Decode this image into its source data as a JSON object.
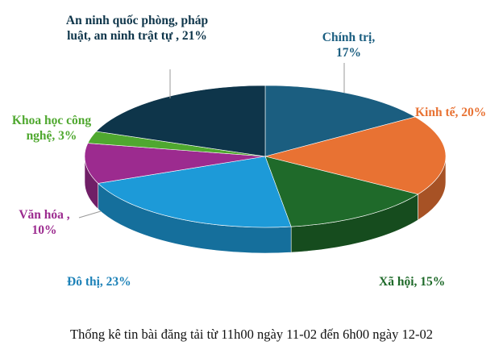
{
  "chart_data": {
    "type": "pie",
    "style": "3d",
    "title": "",
    "caption": "Thống kê tin bài đăng tải từ 11h00 ngày 11-02 đến 6h00 ngày 12-02",
    "legend": "none",
    "slices": [
      {
        "name": "Chính trị",
        "value": 17,
        "label": "Chính trị, 17%",
        "color": "#1b5e80"
      },
      {
        "name": "Kinh tế",
        "value": 20,
        "label": "Kinh tế, 20%",
        "color": "#e87233"
      },
      {
        "name": "Xã hội",
        "value": 15,
        "label": "Xã hội, 15%",
        "color": "#1f6a2a"
      },
      {
        "name": "Đô thị",
        "value": 23,
        "label": "Đô thị, 23%",
        "color": "#1d9ad8"
      },
      {
        "name": "Văn hóa",
        "value": 10,
        "label": "Văn hóa , 10%",
        "color": "#9c2b8f"
      },
      {
        "name": "Khoa học công nghệ",
        "value": 3,
        "label": "Khoa học công nghệ, 3%",
        "color": "#4fa82f"
      },
      {
        "name": "An ninh quốc phòng, pháp luật, an ninh trật tự",
        "value": 21,
        "label": "An ninh quốc phòng, pháp luật, an ninh trật tự , 21%",
        "color": "#0e354a"
      }
    ]
  }
}
